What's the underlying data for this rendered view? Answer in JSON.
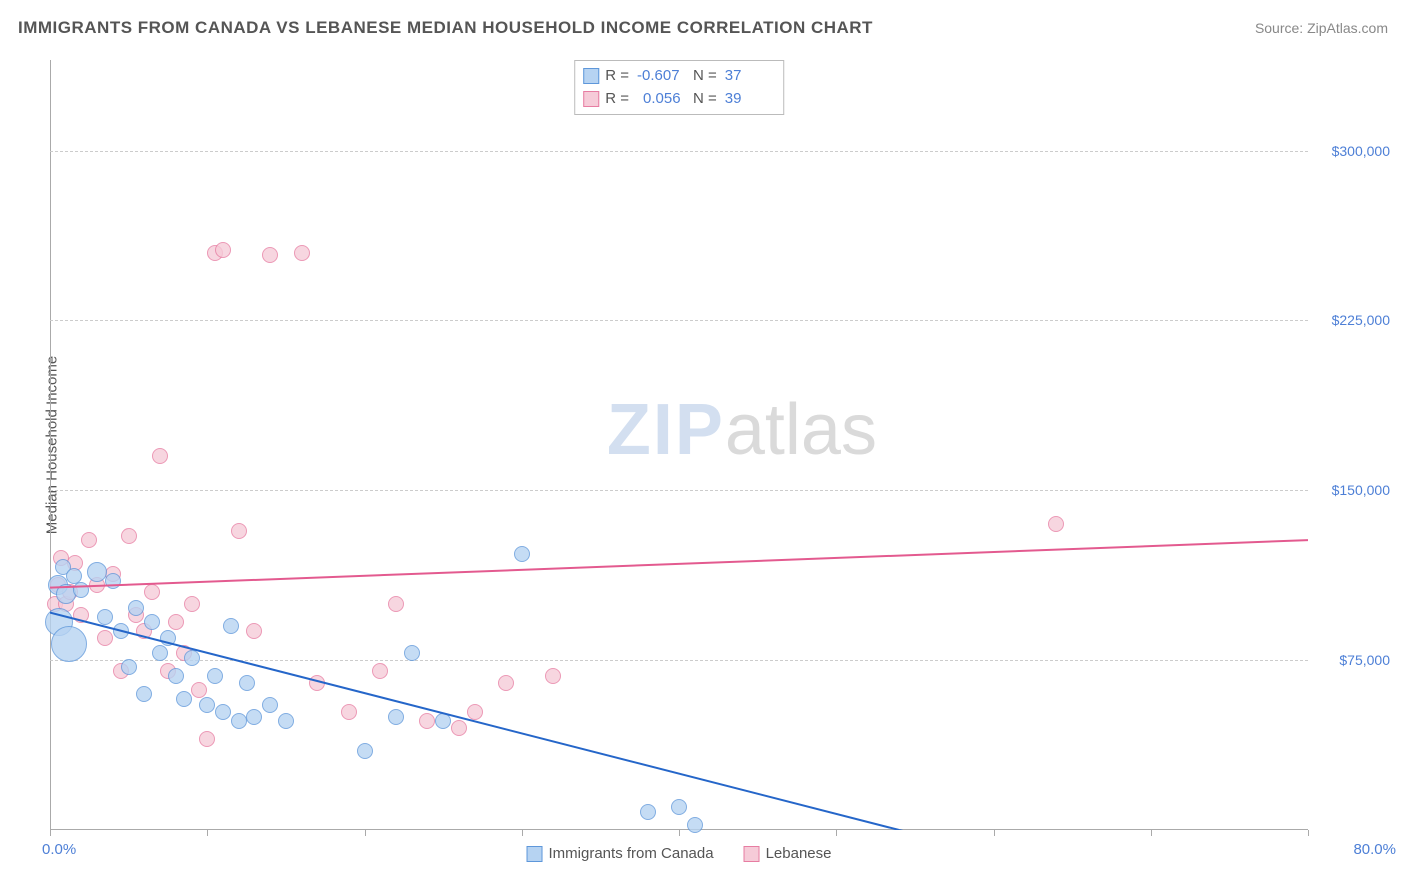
{
  "header": {
    "title": "IMMIGRANTS FROM CANADA VS LEBANESE MEDIAN HOUSEHOLD INCOME CORRELATION CHART",
    "source_prefix": "Source: ",
    "source": "ZipAtlas.com"
  },
  "watermark": {
    "zip": "ZIP",
    "atlas": "atlas"
  },
  "chart": {
    "type": "scatter",
    "ylabel": "Median Household Income",
    "x_min": 0.0,
    "x_max": 80.0,
    "y_min": 0,
    "y_max": 340000,
    "x_left_label": "0.0%",
    "x_right_label": "80.0%",
    "y_gridlines": [
      0,
      75000,
      150000,
      225000,
      300000
    ],
    "y_labels": [
      "",
      "$75,000",
      "$150,000",
      "$225,000",
      "$300,000"
    ],
    "x_ticks": [
      0,
      10,
      20,
      30,
      40,
      50,
      60,
      70,
      80
    ],
    "grid_color": "#cccccc",
    "axis_color": "#aaaaaa",
    "background_color": "#ffffff",
    "label_color": "#4d7fd6",
    "text_color": "#555555"
  },
  "series": {
    "a": {
      "label": "Immigrants from Canada",
      "fill": "#b6d3f2",
      "stroke": "#5e97da",
      "swatch_fill": "#b6d3f2",
      "swatch_stroke": "#5e97da",
      "r_label": "R =",
      "r": "-0.607",
      "n_label": "N =",
      "n": "37",
      "trend": {
        "x1": 0,
        "y1": 96000,
        "x2": 54,
        "y2": 0,
        "dash_to_x": 58,
        "color": "#2566c9",
        "width": 2
      },
      "points": [
        {
          "x": 0.5,
          "y": 108000,
          "r": 10
        },
        {
          "x": 0.6,
          "y": 92000,
          "r": 14
        },
        {
          "x": 0.8,
          "y": 116000,
          "r": 8
        },
        {
          "x": 1.0,
          "y": 104000,
          "r": 10
        },
        {
          "x": 1.2,
          "y": 82000,
          "r": 18
        },
        {
          "x": 1.5,
          "y": 112000,
          "r": 8
        },
        {
          "x": 2.0,
          "y": 106000,
          "r": 8
        },
        {
          "x": 3.0,
          "y": 114000,
          "r": 10
        },
        {
          "x": 3.5,
          "y": 94000,
          "r": 8
        },
        {
          "x": 4.0,
          "y": 110000,
          "r": 8
        },
        {
          "x": 4.5,
          "y": 88000,
          "r": 8
        },
        {
          "x": 5.0,
          "y": 72000,
          "r": 8
        },
        {
          "x": 5.5,
          "y": 98000,
          "r": 8
        },
        {
          "x": 6.0,
          "y": 60000,
          "r": 8
        },
        {
          "x": 6.5,
          "y": 92000,
          "r": 8
        },
        {
          "x": 7.0,
          "y": 78000,
          "r": 8
        },
        {
          "x": 7.5,
          "y": 85000,
          "r": 8
        },
        {
          "x": 8.0,
          "y": 68000,
          "r": 8
        },
        {
          "x": 8.5,
          "y": 58000,
          "r": 8
        },
        {
          "x": 9.0,
          "y": 76000,
          "r": 8
        },
        {
          "x": 10.0,
          "y": 55000,
          "r": 8
        },
        {
          "x": 10.5,
          "y": 68000,
          "r": 8
        },
        {
          "x": 11.0,
          "y": 52000,
          "r": 8
        },
        {
          "x": 11.5,
          "y": 90000,
          "r": 8
        },
        {
          "x": 12.0,
          "y": 48000,
          "r": 8
        },
        {
          "x": 12.5,
          "y": 65000,
          "r": 8
        },
        {
          "x": 13.0,
          "y": 50000,
          "r": 8
        },
        {
          "x": 14.0,
          "y": 55000,
          "r": 8
        },
        {
          "x": 15.0,
          "y": 48000,
          "r": 8
        },
        {
          "x": 20.0,
          "y": 35000,
          "r": 8
        },
        {
          "x": 22.0,
          "y": 50000,
          "r": 8
        },
        {
          "x": 23.0,
          "y": 78000,
          "r": 8
        },
        {
          "x": 25.0,
          "y": 48000,
          "r": 8
        },
        {
          "x": 30.0,
          "y": 122000,
          "r": 8
        },
        {
          "x": 38.0,
          "y": 8000,
          "r": 8
        },
        {
          "x": 40.0,
          "y": 10000,
          "r": 8
        },
        {
          "x": 41.0,
          "y": 2000,
          "r": 8
        }
      ]
    },
    "b": {
      "label": "Lebanese",
      "fill": "#f6cbd8",
      "stroke": "#e77da2",
      "swatch_fill": "#f6cbd8",
      "swatch_stroke": "#e77da2",
      "r_label": "R =",
      "r": "0.056",
      "n_label": "N =",
      "n": "39",
      "trend": {
        "x1": 0,
        "y1": 107000,
        "x2": 80,
        "y2": 128000,
        "color": "#e35a8f",
        "width": 2
      },
      "points": [
        {
          "x": 0.3,
          "y": 100000,
          "r": 8
        },
        {
          "x": 0.5,
          "y": 108000,
          "r": 8
        },
        {
          "x": 0.7,
          "y": 120000,
          "r": 8
        },
        {
          "x": 1.0,
          "y": 100000,
          "r": 8
        },
        {
          "x": 1.3,
          "y": 105000,
          "r": 8
        },
        {
          "x": 1.6,
          "y": 118000,
          "r": 8
        },
        {
          "x": 2.0,
          "y": 95000,
          "r": 8
        },
        {
          "x": 2.5,
          "y": 128000,
          "r": 8
        },
        {
          "x": 3.0,
          "y": 108000,
          "r": 8
        },
        {
          "x": 3.5,
          "y": 85000,
          "r": 8
        },
        {
          "x": 4.0,
          "y": 113000,
          "r": 8
        },
        {
          "x": 4.5,
          "y": 70000,
          "r": 8
        },
        {
          "x": 5.0,
          "y": 130000,
          "r": 8
        },
        {
          "x": 5.5,
          "y": 95000,
          "r": 8
        },
        {
          "x": 6.0,
          "y": 88000,
          "r": 8
        },
        {
          "x": 6.5,
          "y": 105000,
          "r": 8
        },
        {
          "x": 7.0,
          "y": 165000,
          "r": 8
        },
        {
          "x": 7.5,
          "y": 70000,
          "r": 8
        },
        {
          "x": 8.0,
          "y": 92000,
          "r": 8
        },
        {
          "x": 8.5,
          "y": 78000,
          "r": 8
        },
        {
          "x": 9.0,
          "y": 100000,
          "r": 8
        },
        {
          "x": 9.5,
          "y": 62000,
          "r": 8
        },
        {
          "x": 10.0,
          "y": 40000,
          "r": 8
        },
        {
          "x": 10.5,
          "y": 255000,
          "r": 8
        },
        {
          "x": 11.0,
          "y": 256000,
          "r": 8
        },
        {
          "x": 12.0,
          "y": 132000,
          "r": 8
        },
        {
          "x": 13.0,
          "y": 88000,
          "r": 8
        },
        {
          "x": 14.0,
          "y": 254000,
          "r": 8
        },
        {
          "x": 16.0,
          "y": 255000,
          "r": 8
        },
        {
          "x": 17.0,
          "y": 65000,
          "r": 8
        },
        {
          "x": 19.0,
          "y": 52000,
          "r": 8
        },
        {
          "x": 21.0,
          "y": 70000,
          "r": 8
        },
        {
          "x": 22.0,
          "y": 100000,
          "r": 8
        },
        {
          "x": 24.0,
          "y": 48000,
          "r": 8
        },
        {
          "x": 26.0,
          "y": 45000,
          "r": 8
        },
        {
          "x": 27.0,
          "y": 52000,
          "r": 8
        },
        {
          "x": 29.0,
          "y": 65000,
          "r": 8
        },
        {
          "x": 32.0,
          "y": 68000,
          "r": 8
        },
        {
          "x": 64.0,
          "y": 135000,
          "r": 8
        }
      ]
    }
  }
}
